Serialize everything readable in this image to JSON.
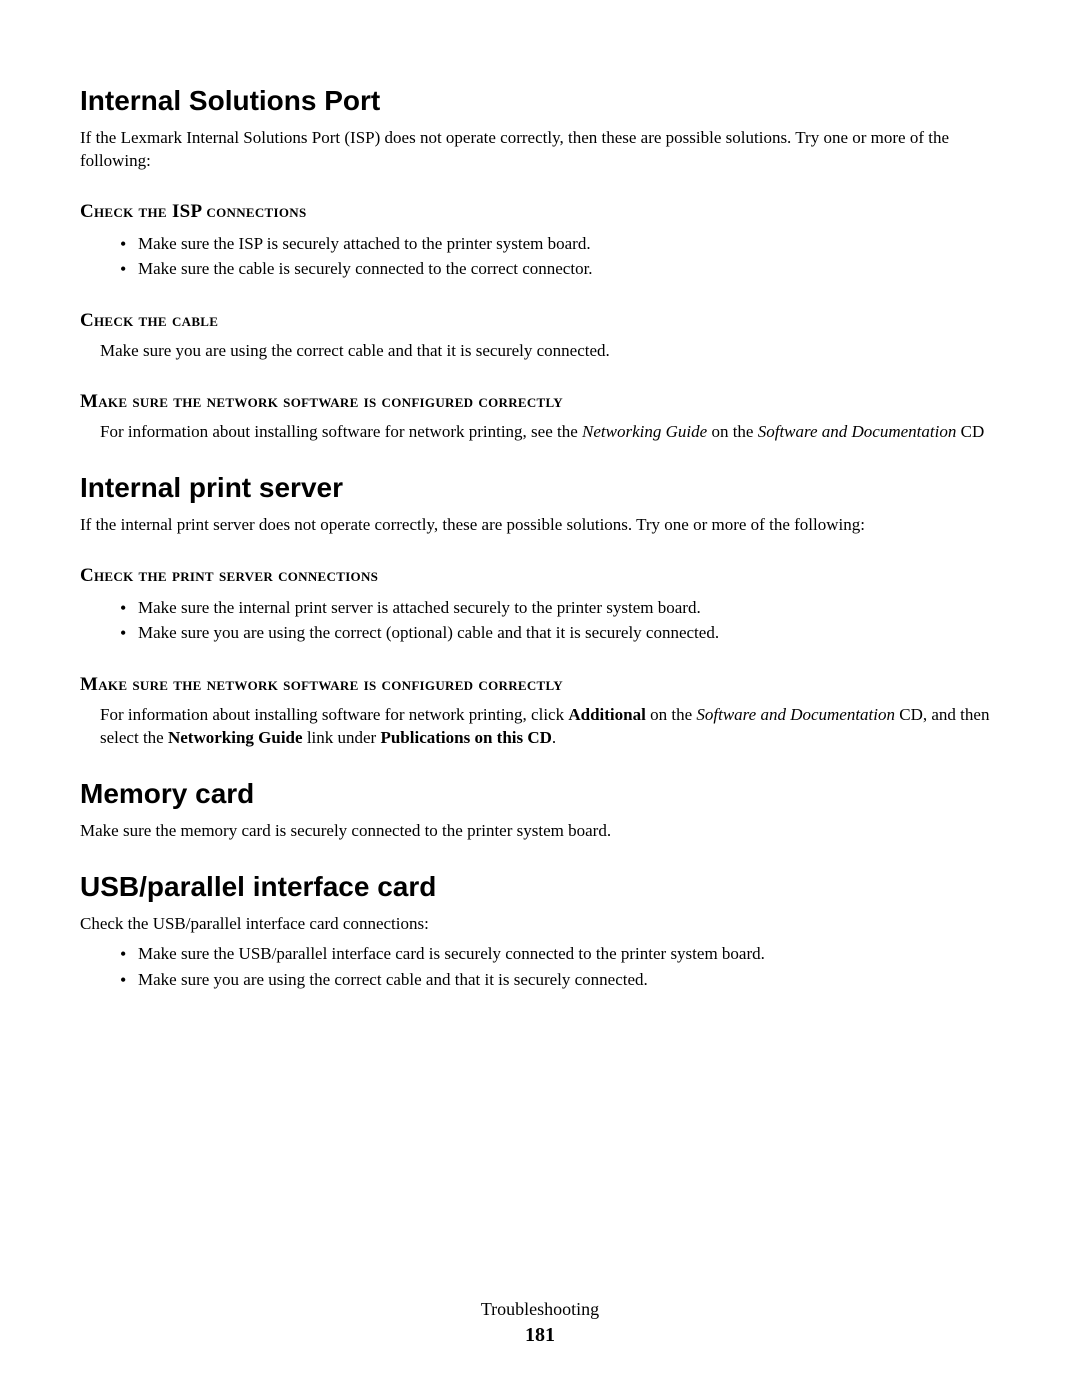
{
  "sections": {
    "isp": {
      "heading": "Internal Solutions Port",
      "intro": "If the Lexmark Internal Solutions Port (ISP) does not operate correctly, then these are possible solutions. Try one or more of the following:",
      "sub1": {
        "heading": "Check the ISP connections",
        "bullets": [
          "Make sure the ISP is securely attached to the printer system board.",
          "Make sure the cable is securely connected to the correct connector."
        ]
      },
      "sub2": {
        "heading": "Check the cable",
        "text": "Make sure you are using the correct cable and that it is securely connected."
      },
      "sub3": {
        "heading": "Make sure the network software is configured correctly",
        "text_prefix": "For information about installing software for network printing, see the ",
        "text_italic1": "Networking Guide",
        "text_mid": " on the ",
        "text_italic2": "Software and Documentation",
        "text_suffix": " CD"
      }
    },
    "ips": {
      "heading": "Internal print server",
      "intro": "If the internal print server does not operate correctly, these are possible solutions. Try one or more of the following:",
      "sub1": {
        "heading": "Check the print server connections",
        "bullets": [
          "Make sure the internal print server is attached securely to the printer system board.",
          "Make sure you are using the correct (optional) cable and that it is securely connected."
        ]
      },
      "sub2": {
        "heading": "Make sure the network software is configured correctly",
        "text_prefix": "For information about installing software for network printing, click ",
        "text_bold1": "Additional",
        "text_mid1": " on the ",
        "text_italic": "Software and Documentation",
        "text_mid2": " CD, and then select the ",
        "text_bold2": "Networking Guide",
        "text_mid3": " link under ",
        "text_bold3": "Publications on this CD",
        "text_suffix": "."
      }
    },
    "memory": {
      "heading": "Memory card",
      "text": "Make sure the memory card is securely connected to the printer system board."
    },
    "usb": {
      "heading": "USB/parallel interface card",
      "intro": "Check the USB/parallel interface card connections:",
      "bullets": [
        "Make sure the USB/parallel interface card is securely connected to the printer system board.",
        "Make sure you are using the correct cable and that it is securely connected."
      ]
    }
  },
  "footer": {
    "label": "Troubleshooting",
    "page": "181"
  }
}
